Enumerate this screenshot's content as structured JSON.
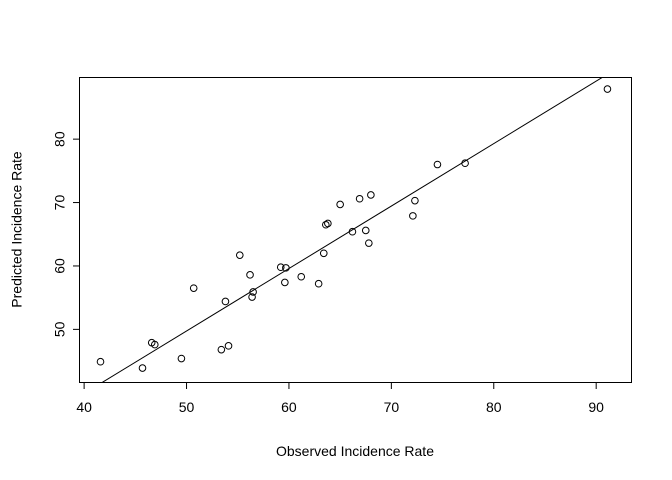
{
  "chart_data": {
    "type": "scatter",
    "title": "",
    "xlabel": "Observed Incidence Rate",
    "ylabel": "Predicted Incidence Rate",
    "xlim": [
      39.5,
      93.4
    ],
    "ylim": [
      41.7,
      89.8
    ],
    "x_ticks": [
      40,
      50,
      60,
      70,
      80,
      90
    ],
    "y_ticks": [
      50,
      60,
      70,
      80
    ],
    "x_tick_labels": [
      "40",
      "50",
      "60",
      "70",
      "80",
      "90"
    ],
    "y_tick_labels": [
      "50",
      "60",
      "70",
      "80"
    ],
    "grid": false,
    "legend": "none",
    "points": [
      {
        "x": 41.6,
        "y": 44.9
      },
      {
        "x": 45.7,
        "y": 43.9
      },
      {
        "x": 46.6,
        "y": 47.9
      },
      {
        "x": 46.9,
        "y": 47.6
      },
      {
        "x": 49.5,
        "y": 45.4
      },
      {
        "x": 50.7,
        "y": 56.5
      },
      {
        "x": 53.4,
        "y": 46.8
      },
      {
        "x": 53.8,
        "y": 54.4
      },
      {
        "x": 54.1,
        "y": 47.4
      },
      {
        "x": 55.2,
        "y": 61.7
      },
      {
        "x": 56.2,
        "y": 58.6
      },
      {
        "x": 56.4,
        "y": 55.1
      },
      {
        "x": 56.5,
        "y": 55.9
      },
      {
        "x": 59.2,
        "y": 59.8
      },
      {
        "x": 59.6,
        "y": 57.4
      },
      {
        "x": 59.7,
        "y": 59.7
      },
      {
        "x": 61.2,
        "y": 58.3
      },
      {
        "x": 62.9,
        "y": 57.2
      },
      {
        "x": 63.4,
        "y": 62.0
      },
      {
        "x": 63.6,
        "y": 66.5
      },
      {
        "x": 63.8,
        "y": 66.7
      },
      {
        "x": 65.0,
        "y": 69.7
      },
      {
        "x": 66.2,
        "y": 65.4
      },
      {
        "x": 66.9,
        "y": 70.6
      },
      {
        "x": 67.5,
        "y": 65.6
      },
      {
        "x": 67.8,
        "y": 63.6
      },
      {
        "x": 68.0,
        "y": 71.2
      },
      {
        "x": 72.1,
        "y": 67.9
      },
      {
        "x": 72.3,
        "y": 70.3
      },
      {
        "x": 74.5,
        "y": 76.0
      },
      {
        "x": 77.2,
        "y": 76.2
      },
      {
        "x": 91.1,
        "y": 87.9
      }
    ],
    "fit_line": {
      "x": [
        39.5,
        93.4
      ],
      "y": [
        39.4,
        92.5
      ]
    }
  }
}
